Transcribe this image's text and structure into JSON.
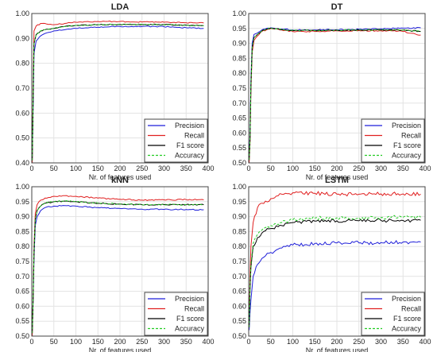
{
  "colors": {
    "blue": "#1f1fd9",
    "red": "#e02020",
    "black": "#000000",
    "green": "#22cc22"
  },
  "chart_data": [
    {
      "type": "line",
      "title": "LDA",
      "xlabel": "Nr. of features used",
      "ylabel": "",
      "xlim": [
        0,
        400
      ],
      "ylim": [
        0.4,
        1.0
      ],
      "xticks": [
        "0",
        "50",
        "100",
        "150",
        "200",
        "250",
        "300",
        "350",
        "400"
      ],
      "yticks": [
        "0.40",
        "0.50",
        "0.60",
        "0.70",
        "0.80",
        "0.90",
        "1.00"
      ],
      "grid": true,
      "legend_position": "bottom-right",
      "x": [
        1,
        3,
        5,
        10,
        20,
        30,
        50,
        75,
        100,
        150,
        200,
        250,
        300,
        350,
        390
      ],
      "series": [
        {
          "name": "Precision",
          "color": "#1f1fd9",
          "style": "solid",
          "values": [
            0.42,
            0.62,
            0.84,
            0.89,
            0.91,
            0.92,
            0.93,
            0.935,
            0.94,
            0.945,
            0.948,
            0.948,
            0.947,
            0.943,
            0.94
          ]
        },
        {
          "name": "Recall",
          "color": "#e02020",
          "style": "solid",
          "values": [
            0.4,
            0.7,
            0.93,
            0.95,
            0.96,
            0.96,
            0.955,
            0.96,
            0.965,
            0.968,
            0.968,
            0.966,
            0.965,
            0.963,
            0.962
          ]
        },
        {
          "name": "F1 score",
          "color": "#000000",
          "style": "solid",
          "values": [
            0.41,
            0.66,
            0.88,
            0.915,
            0.93,
            0.935,
            0.94,
            0.948,
            0.952,
            0.955,
            0.956,
            0.956,
            0.955,
            0.953,
            0.951
          ]
        },
        {
          "name": "Accuracy",
          "color": "#22cc22",
          "style": "dashed",
          "values": [
            0.41,
            0.66,
            0.88,
            0.915,
            0.93,
            0.935,
            0.94,
            0.948,
            0.952,
            0.955,
            0.956,
            0.956,
            0.955,
            0.953,
            0.951
          ]
        }
      ]
    },
    {
      "type": "line",
      "title": "DT",
      "xlabel": "Nr. of features used",
      "ylabel": "",
      "xlim": [
        0,
        400
      ],
      "ylim": [
        0.5,
        1.0
      ],
      "xticks": [
        "0",
        "50",
        "100",
        "150",
        "200",
        "250",
        "300",
        "350",
        "400"
      ],
      "yticks": [
        "0.50",
        "0.55",
        "0.60",
        "0.65",
        "0.70",
        "0.75",
        "0.80",
        "0.85",
        "0.90",
        "0.95",
        "1.00"
      ],
      "grid": true,
      "legend_position": "bottom-right",
      "x": [
        1,
        3,
        5,
        8,
        12,
        20,
        30,
        40,
        50,
        75,
        100,
        150,
        200,
        250,
        300,
        350,
        390
      ],
      "series": [
        {
          "name": "Precision",
          "color": "#1f1fd9",
          "style": "solid",
          "values": [
            0.52,
            0.6,
            0.78,
            0.9,
            0.93,
            0.935,
            0.945,
            0.95,
            0.952,
            0.948,
            0.945,
            0.945,
            0.946,
            0.947,
            0.949,
            0.951,
            0.952
          ]
        },
        {
          "name": "Recall",
          "color": "#e02020",
          "style": "solid",
          "values": [
            0.5,
            0.57,
            0.74,
            0.87,
            0.91,
            0.925,
            0.94,
            0.945,
            0.95,
            0.945,
            0.94,
            0.94,
            0.942,
            0.943,
            0.942,
            0.94,
            0.928
          ]
        },
        {
          "name": "F1 score",
          "color": "#000000",
          "style": "solid",
          "values": [
            0.51,
            0.58,
            0.76,
            0.885,
            0.92,
            0.93,
            0.942,
            0.948,
            0.951,
            0.946,
            0.943,
            0.943,
            0.944,
            0.945,
            0.945,
            0.945,
            0.94
          ]
        },
        {
          "name": "Accuracy",
          "color": "#22cc22",
          "style": "dashed",
          "values": [
            0.51,
            0.58,
            0.76,
            0.885,
            0.92,
            0.93,
            0.942,
            0.948,
            0.951,
            0.946,
            0.943,
            0.943,
            0.944,
            0.945,
            0.945,
            0.945,
            0.94
          ]
        }
      ]
    },
    {
      "type": "line",
      "title": "kNN",
      "xlabel": "Nr. of features used",
      "ylabel": "",
      "xlim": [
        0,
        400
      ],
      "ylim": [
        0.5,
        1.0
      ],
      "xticks": [
        "0",
        "50",
        "100",
        "150",
        "200",
        "250",
        "300",
        "350",
        "400"
      ],
      "yticks": [
        "0.50",
        "0.55",
        "0.60",
        "0.65",
        "0.70",
        "0.75",
        "0.80",
        "0.85",
        "0.90",
        "0.95",
        "1.00"
      ],
      "grid": true,
      "legend_position": "bottom-right",
      "x": [
        1,
        3,
        5,
        8,
        12,
        20,
        30,
        50,
        75,
        100,
        150,
        200,
        250,
        300,
        350,
        390
      ],
      "series": [
        {
          "name": "Precision",
          "color": "#1f1fd9",
          "style": "solid",
          "values": [
            0.52,
            0.62,
            0.76,
            0.87,
            0.9,
            0.92,
            0.93,
            0.935,
            0.937,
            0.935,
            0.93,
            0.927,
            0.925,
            0.924,
            0.924,
            0.923
          ]
        },
        {
          "name": "Recall",
          "color": "#e02020",
          "style": "solid",
          "values": [
            0.5,
            0.63,
            0.8,
            0.91,
            0.94,
            0.955,
            0.962,
            0.968,
            0.97,
            0.968,
            0.962,
            0.958,
            0.955,
            0.956,
            0.957,
            0.956
          ]
        },
        {
          "name": "F1 score",
          "color": "#000000",
          "style": "solid",
          "values": [
            0.51,
            0.625,
            0.78,
            0.89,
            0.92,
            0.935,
            0.945,
            0.95,
            0.952,
            0.95,
            0.945,
            0.942,
            0.94,
            0.94,
            0.94,
            0.94
          ]
        },
        {
          "name": "Accuracy",
          "color": "#22cc22",
          "style": "dashed",
          "values": [
            0.51,
            0.625,
            0.78,
            0.89,
            0.92,
            0.935,
            0.945,
            0.95,
            0.952,
            0.95,
            0.945,
            0.942,
            0.94,
            0.94,
            0.94,
            0.94
          ]
        }
      ]
    },
    {
      "type": "line",
      "title": "LSTM",
      "xlabel": "Nr. of features used",
      "ylabel": "",
      "xlim": [
        0,
        400
      ],
      "ylim": [
        0.5,
        1.0
      ],
      "xticks": [
        "0",
        "50",
        "100",
        "150",
        "200",
        "250",
        "300",
        "350",
        "400"
      ],
      "yticks": [
        "0.50",
        "0.55",
        "0.60",
        "0.65",
        "0.70",
        "0.75",
        "0.80",
        "0.85",
        "0.90",
        "0.95",
        "1.00"
      ],
      "grid": true,
      "legend_position": "bottom-right",
      "x": [
        1,
        3,
        5,
        10,
        20,
        30,
        50,
        75,
        100,
        150,
        200,
        250,
        300,
        350,
        390
      ],
      "series": [
        {
          "name": "Precision",
          "color": "#1f1fd9",
          "style": "solid",
          "values": [
            0.52,
            0.58,
            0.62,
            0.7,
            0.74,
            0.76,
            0.78,
            0.795,
            0.805,
            0.81,
            0.812,
            0.812,
            0.813,
            0.815,
            0.815
          ]
        },
        {
          "name": "Recall",
          "color": "#e02020",
          "style": "solid",
          "values": [
            0.55,
            0.7,
            0.8,
            0.88,
            0.93,
            0.945,
            0.96,
            0.975,
            0.98,
            0.978,
            0.975,
            0.975,
            0.976,
            0.976,
            0.975
          ]
        },
        {
          "name": "F1 score",
          "color": "#000000",
          "style": "solid",
          "values": [
            0.53,
            0.66,
            0.73,
            0.8,
            0.83,
            0.845,
            0.86,
            0.87,
            0.88,
            0.885,
            0.886,
            0.886,
            0.887,
            0.887,
            0.888
          ]
        },
        {
          "name": "Accuracy",
          "color": "#22cc22",
          "style": "dashed",
          "values": [
            0.53,
            0.67,
            0.74,
            0.81,
            0.84,
            0.855,
            0.87,
            0.88,
            0.89,
            0.895,
            0.896,
            0.896,
            0.897,
            0.898,
            0.898
          ]
        }
      ]
    }
  ]
}
